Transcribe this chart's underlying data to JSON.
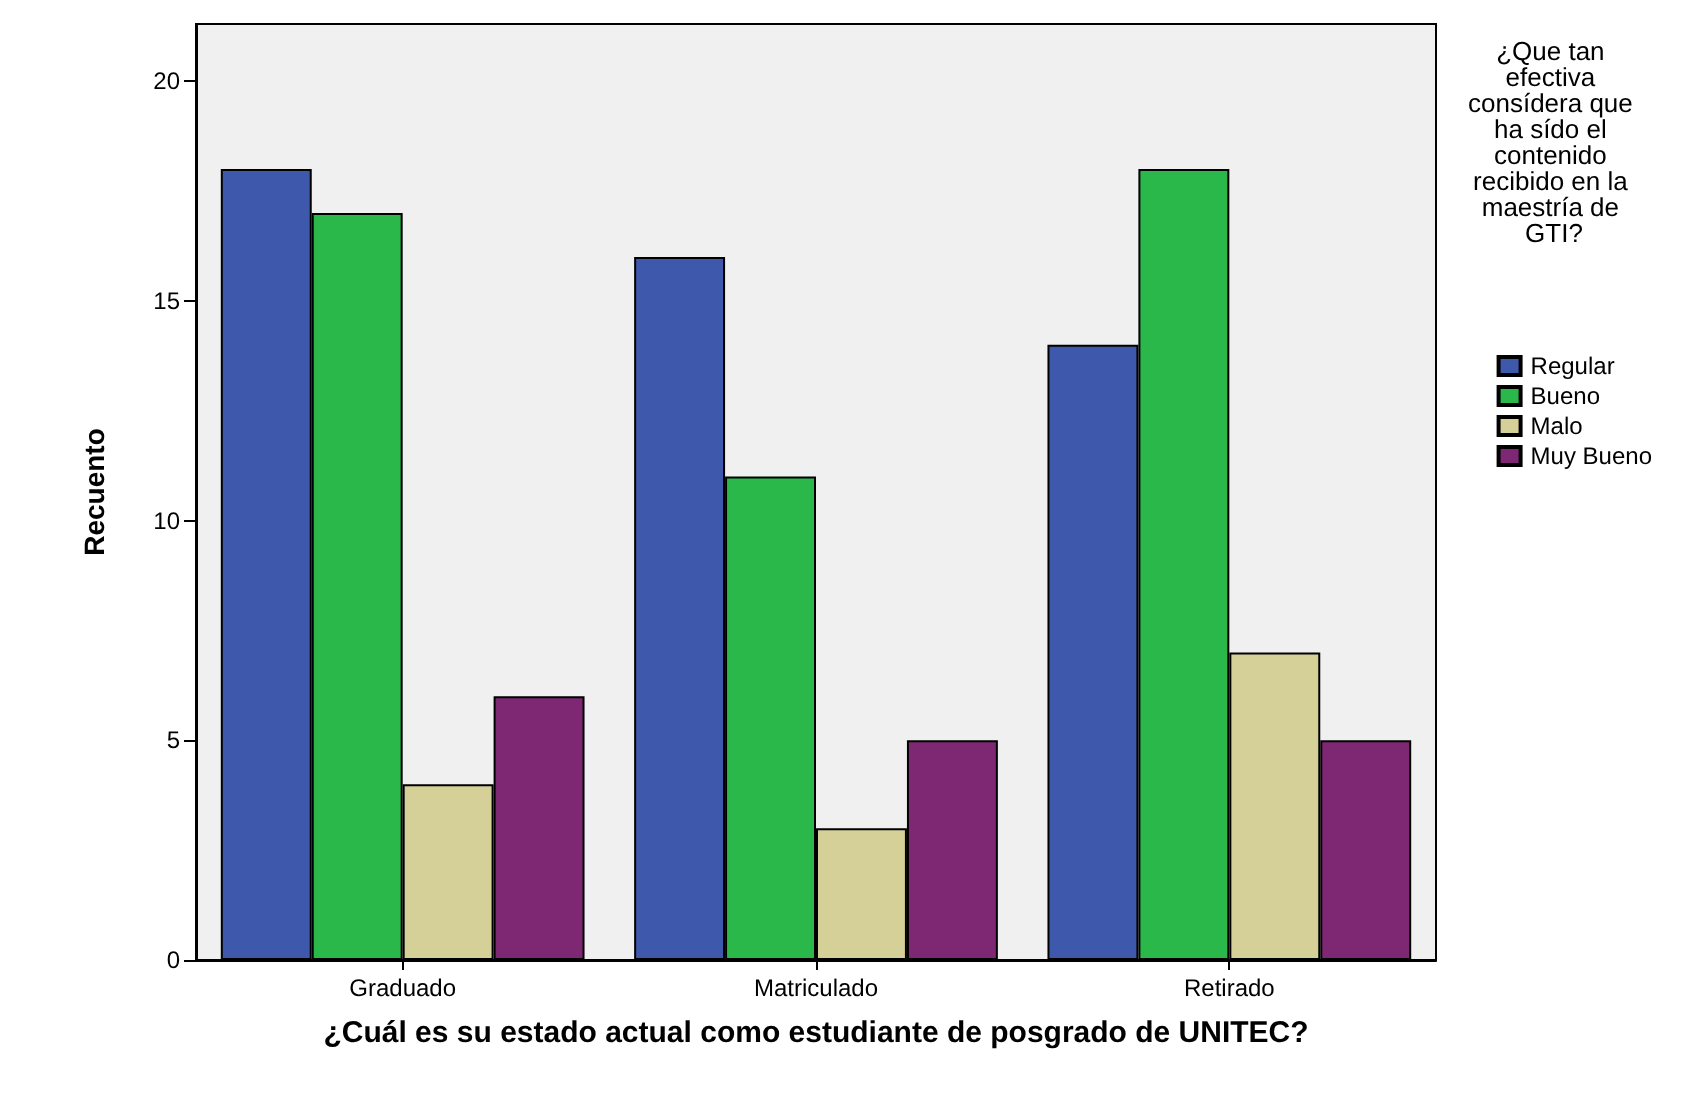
{
  "chart_data": {
    "type": "bar",
    "xlabel": "¿Cuál es su estado actual como estudiante de posgrado de UNITEC?",
    "ylabel": "Recuento",
    "legend_title": "¿Que tan efectiva consídera que ha sído el contenido recibido en la maestría de GTI?",
    "categories": [
      "Graduado",
      "Matriculado",
      "Retirado"
    ],
    "series": [
      {
        "name": "Regular",
        "color": "#3e58ac",
        "values": [
          18,
          16,
          14
        ]
      },
      {
        "name": "Bueno",
        "color": "#2bb84a",
        "values": [
          17,
          11,
          18
        ]
      },
      {
        "name": "Malo",
        "color": "#d5cf98",
        "values": [
          4,
          3,
          7
        ]
      },
      {
        "name": "Muy Bueno",
        "color": "#7e2773",
        "values": [
          6,
          5,
          5
        ]
      }
    ],
    "ylim": [
      0,
      21.3
    ],
    "yticks": [
      0,
      5,
      10,
      15,
      20
    ],
    "grid": false,
    "legend": "right"
  }
}
